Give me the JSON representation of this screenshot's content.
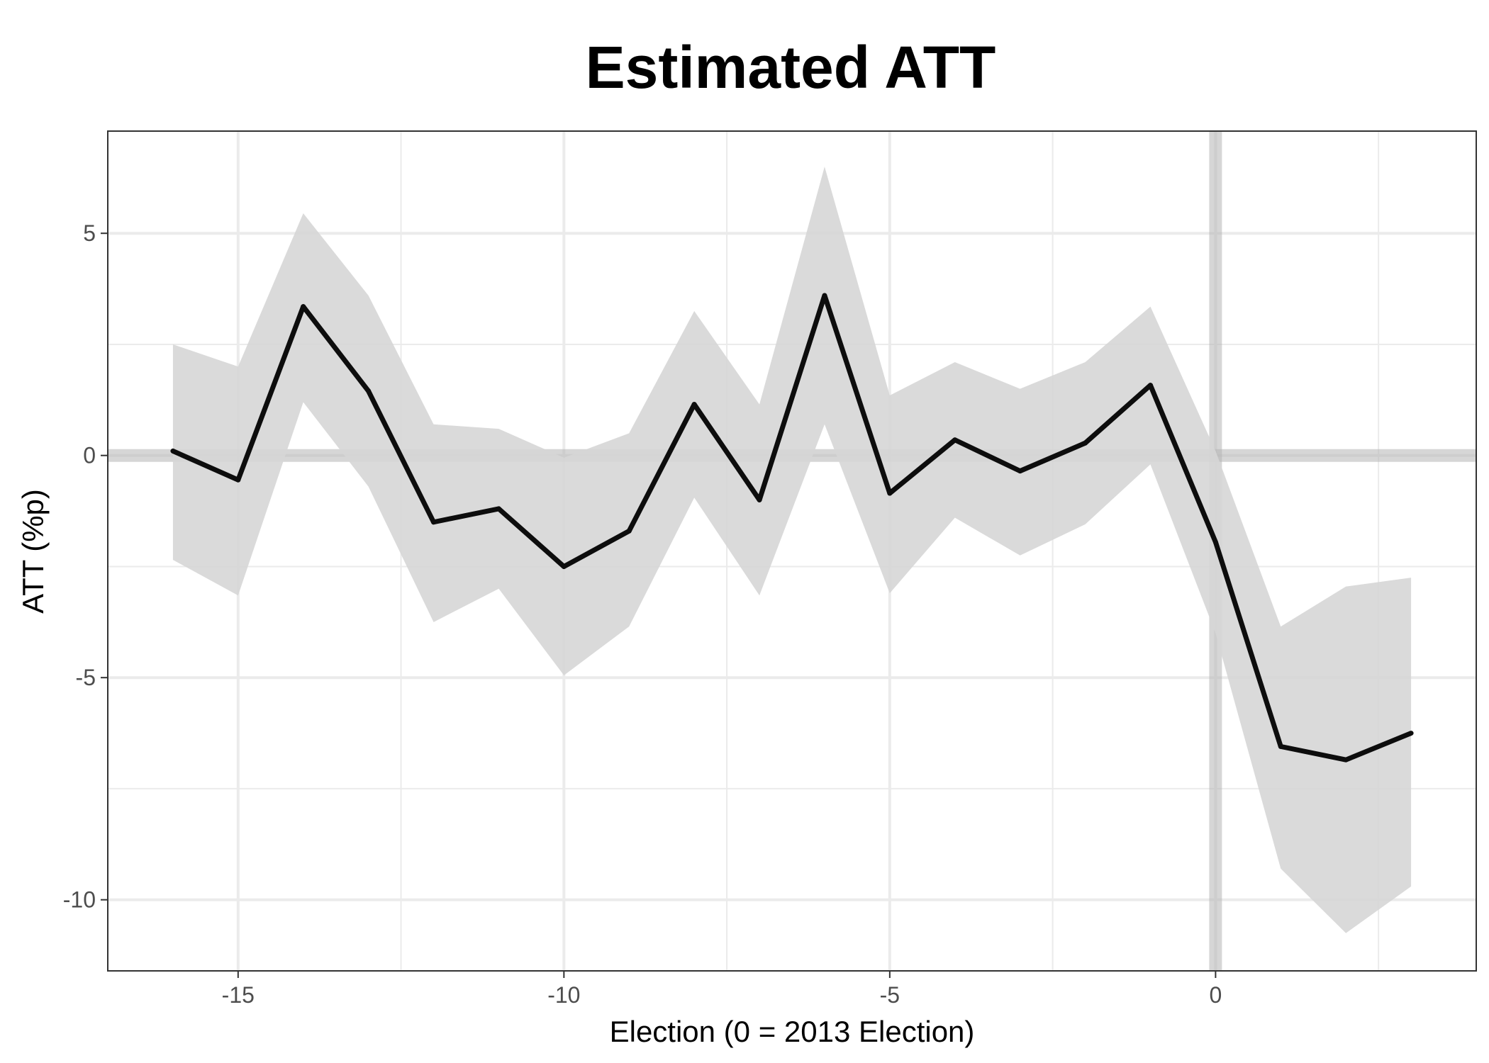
{
  "chart_data": {
    "type": "line",
    "title": "Estimated ATT",
    "xlabel": "Election (0 = 2013 Election)",
    "ylabel": "ATT (%p)",
    "xlim": [
      -17,
      4
    ],
    "ylim": [
      -11.6,
      7.3
    ],
    "x_ticks": [
      -15,
      -10,
      -5,
      0
    ],
    "x_tick_labels": [
      "-15",
      "-10",
      "-5",
      "0"
    ],
    "y_ticks": [
      -10,
      -5,
      0,
      5
    ],
    "y_tick_labels": [
      "-10",
      "-5",
      "0",
      "5"
    ],
    "grid": true,
    "legend": "none",
    "reference_lines": {
      "h": 0,
      "v": 0
    },
    "colors": {
      "line": "#0d0d0d",
      "ribbon": "#d6d6d6",
      "reference": "#b5b5b5",
      "grid": "#ebebeb",
      "panel_border": "#333333"
    },
    "series": [
      {
        "x": [
          -16,
          -15,
          -14,
          -13,
          -12,
          -11,
          -10,
          -9,
          -8,
          -7,
          -6,
          -5,
          -4,
          -3,
          -2,
          -1,
          0,
          1,
          2,
          3
        ],
        "values": [
          0.1,
          -0.55,
          3.35,
          1.45,
          -1.5,
          -1.2,
          -2.5,
          -1.7,
          1.15,
          -1.0,
          3.6,
          -0.85,
          0.35,
          -0.35,
          0.28,
          1.58,
          -1.95,
          -6.55,
          -6.85,
          -6.25
        ],
        "lower": [
          -2.35,
          -3.15,
          1.2,
          -0.7,
          -3.75,
          -3.0,
          -4.95,
          -3.85,
          -0.95,
          -3.15,
          0.7,
          -3.1,
          -1.4,
          -2.25,
          -1.55,
          -0.2,
          -4.0,
          -9.3,
          -10.75,
          -9.7
        ],
        "upper": [
          2.5,
          2.0,
          5.45,
          3.6,
          0.7,
          0.6,
          -0.05,
          0.5,
          3.25,
          1.15,
          6.5,
          1.35,
          2.1,
          1.5,
          2.1,
          3.35,
          0.1,
          -3.85,
          -2.95,
          -2.75
        ]
      }
    ]
  }
}
